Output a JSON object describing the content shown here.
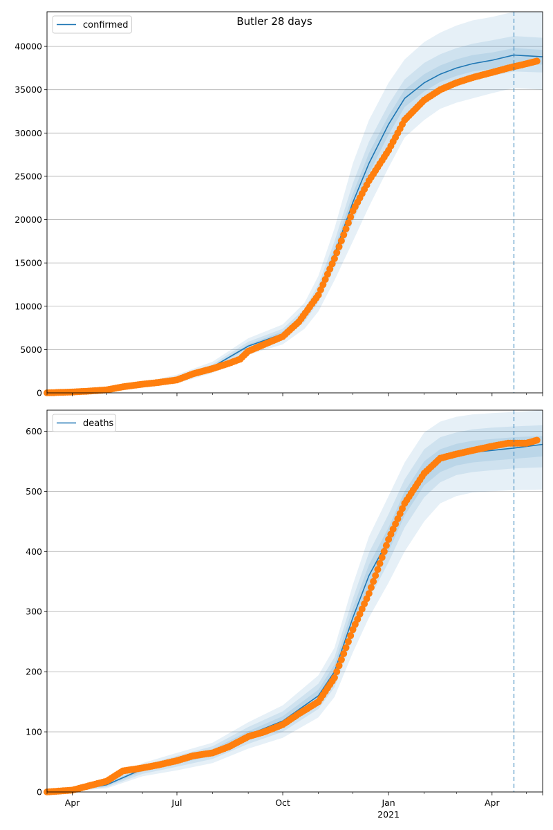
{
  "title": "Butler 28 days",
  "colors": {
    "model_line": "#1f77b4",
    "band": "#1f77b4",
    "observed": "#ff7f0e",
    "grid": "#b0b0b0",
    "vline": "#1f77b4"
  },
  "chart_data": [
    {
      "type": "line",
      "legend": "confirmed",
      "legend_location": "top-left",
      "grid": "horizontal",
      "x_range": [
        "2020-03-10",
        "2021-05-15"
      ],
      "ylim": [
        0,
        44000
      ],
      "y_ticks": [
        0,
        5000,
        10000,
        15000,
        20000,
        25000,
        30000,
        35000,
        40000
      ],
      "forecast_start": "2021-04-20",
      "model": {
        "x": [
          "2020-03-10",
          "2020-04-01",
          "2020-05-01",
          "2020-06-01",
          "2020-07-01",
          "2020-08-01",
          "2020-09-01",
          "2020-10-01",
          "2020-10-20",
          "2020-11-01",
          "2020-11-15",
          "2020-12-01",
          "2020-12-15",
          "2021-01-01",
          "2021-01-15",
          "2021-02-01",
          "2021-02-15",
          "2021-03-01",
          "2021-03-15",
          "2021-04-01",
          "2021-04-20",
          "2021-05-15"
        ],
        "y": [
          0,
          100,
          400,
          900,
          1600,
          3000,
          5400,
          6800,
          9000,
          11500,
          16000,
          22000,
          26500,
          31000,
          34000,
          35800,
          36800,
          37500,
          38000,
          38400,
          39000,
          38800
        ],
        "band_upper": [
          [
            0,
            150,
            550,
            1200,
            2100,
            3600,
            6300,
            7900,
            10400,
            13500,
            19000,
            26500,
            31500,
            35800,
            38500,
            40500,
            41600,
            42400,
            43000,
            43400,
            44000,
            44000
          ],
          [
            0,
            130,
            480,
            1050,
            1850,
            3300,
            5900,
            7400,
            9700,
            12500,
            17500,
            24200,
            29000,
            33300,
            36200,
            38100,
            39100,
            39800,
            40300,
            40700,
            41200,
            41000
          ],
          [
            0,
            110,
            430,
            950,
            1700,
            3100,
            5600,
            7100,
            9300,
            12000,
            16700,
            23000,
            27700,
            32000,
            35000,
            36800,
            37800,
            38500,
            39000,
            39300,
            39800,
            39600
          ]
        ],
        "band_lower": [
          [
            0,
            50,
            250,
            600,
            1100,
            2300,
            4400,
            5600,
            7400,
            9400,
            13000,
            17500,
            21500,
            26000,
            29500,
            31500,
            32800,
            33500,
            34000,
            34600,
            35200,
            35000
          ],
          [
            0,
            70,
            320,
            750,
            1350,
            2600,
            4900,
            6200,
            8200,
            10500,
            14500,
            19800,
            24000,
            28700,
            32000,
            33800,
            35000,
            35700,
            36200,
            36600,
            37100,
            37000
          ],
          [
            0,
            90,
            370,
            830,
            1500,
            2800,
            5200,
            6500,
            8700,
            11000,
            15300,
            20900,
            25300,
            29800,
            33000,
            34800,
            35900,
            36600,
            37100,
            37400,
            38000,
            37900
          ]
        ]
      },
      "observed": {
        "x": [
          "2020-03-10",
          "2020-04-01",
          "2020-04-15",
          "2020-05-01",
          "2020-05-15",
          "2020-06-01",
          "2020-06-15",
          "2020-07-01",
          "2020-07-15",
          "2020-08-01",
          "2020-08-15",
          "2020-08-25",
          "2020-09-01",
          "2020-09-15",
          "2020-10-01",
          "2020-10-15",
          "2020-11-01",
          "2020-11-15",
          "2020-12-01",
          "2020-12-15",
          "2021-01-01",
          "2021-01-15",
          "2021-02-01",
          "2021-02-15",
          "2021-03-01",
          "2021-03-15",
          "2021-04-01",
          "2021-04-15",
          "2021-05-01",
          "2021-05-10"
        ],
        "y": [
          0,
          100,
          200,
          350,
          700,
          1000,
          1200,
          1500,
          2200,
          2800,
          3400,
          3900,
          4800,
          5600,
          6500,
          8200,
          11300,
          15500,
          21000,
          24500,
          28000,
          31500,
          33800,
          35000,
          35800,
          36400,
          37000,
          37500,
          38000,
          38300
        ]
      }
    },
    {
      "type": "line",
      "legend": "deaths",
      "legend_location": "top-left",
      "grid": "horizontal",
      "x_range": [
        "2020-03-10",
        "2021-05-15"
      ],
      "ylim": [
        0,
        635
      ],
      "y_ticks": [
        0,
        100,
        200,
        300,
        400,
        500,
        600
      ],
      "x_ticks": [
        "Apr",
        "Jul",
        "Oct",
        "Jan",
        "Apr"
      ],
      "x_tick_sublabel": "2021",
      "forecast_start": "2021-04-20",
      "model": {
        "x": [
          "2020-03-10",
          "2020-04-01",
          "2020-05-01",
          "2020-06-01",
          "2020-07-01",
          "2020-08-01",
          "2020-09-01",
          "2020-10-01",
          "2020-11-01",
          "2020-11-15",
          "2020-12-01",
          "2020-12-15",
          "2021-01-01",
          "2021-01-15",
          "2021-02-01",
          "2021-02-15",
          "2021-03-01",
          "2021-03-15",
          "2021-04-01",
          "2021-04-20",
          "2021-05-15"
        ],
        "y": [
          0,
          2,
          12,
          38,
          52,
          66,
          95,
          118,
          160,
          200,
          290,
          360,
          420,
          480,
          530,
          550,
          560,
          565,
          568,
          572,
          578
        ],
        "band_upper": [
          [
            0,
            4,
            18,
            48,
            65,
            82,
            116,
            144,
            194,
            240,
            345,
            425,
            492,
            548,
            598,
            616,
            624,
            628,
            630,
            632,
            635
          ],
          [
            0,
            3,
            16,
            44,
            60,
            76,
            108,
            134,
            180,
            224,
            322,
            398,
            462,
            520,
            570,
            590,
            598,
            603,
            606,
            608,
            610
          ],
          [
            0,
            3,
            14,
            41,
            56,
            71,
            101,
            126,
            170,
            212,
            306,
            378,
            440,
            500,
            550,
            570,
            579,
            584,
            587,
            590,
            592
          ]
        ],
        "band_lower": [
          [
            0,
            1,
            6,
            26,
            36,
            48,
            72,
            90,
            124,
            158,
            232,
            290,
            348,
            400,
            450,
            480,
            492,
            498,
            500,
            502,
            503
          ],
          [
            0,
            1,
            8,
            30,
            42,
            55,
            80,
            100,
            138,
            174,
            256,
            320,
            382,
            440,
            490,
            515,
            527,
            532,
            535,
            538,
            540
          ],
          [
            0,
            2,
            10,
            34,
            47,
            60,
            87,
            108,
            148,
            186,
            272,
            340,
            400,
            460,
            510,
            532,
            543,
            548,
            551,
            554,
            558
          ]
        ]
      },
      "observed": {
        "x": [
          "2020-03-10",
          "2020-04-01",
          "2020-04-15",
          "2020-05-01",
          "2020-05-15",
          "2020-06-01",
          "2020-06-15",
          "2020-07-01",
          "2020-07-15",
          "2020-08-01",
          "2020-08-15",
          "2020-09-01",
          "2020-09-15",
          "2020-10-01",
          "2020-10-15",
          "2020-11-01",
          "2020-11-15",
          "2020-12-01",
          "2020-12-15",
          "2021-01-01",
          "2021-01-15",
          "2021-02-01",
          "2021-02-15",
          "2021-03-01",
          "2021-03-15",
          "2021-04-01",
          "2021-04-15",
          "2021-05-01",
          "2021-05-10"
        ],
        "y": [
          0,
          3,
          10,
          18,
          35,
          40,
          45,
          52,
          60,
          65,
          75,
          92,
          100,
          112,
          130,
          150,
          190,
          270,
          330,
          420,
          480,
          530,
          555,
          562,
          568,
          575,
          580,
          580,
          585
        ]
      }
    }
  ]
}
